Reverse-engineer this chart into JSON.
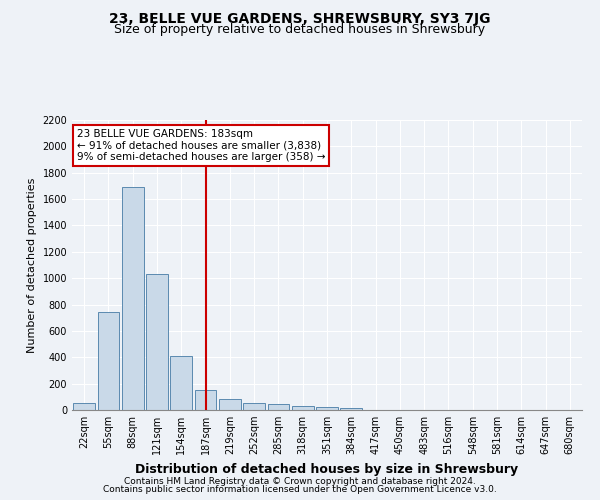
{
  "title": "23, BELLE VUE GARDENS, SHREWSBURY, SY3 7JG",
  "subtitle": "Size of property relative to detached houses in Shrewsbury",
  "xlabel": "Distribution of detached houses by size in Shrewsbury",
  "ylabel": "Number of detached properties",
  "bin_labels": [
    "22sqm",
    "55sqm",
    "88sqm",
    "121sqm",
    "154sqm",
    "187sqm",
    "219sqm",
    "252sqm",
    "285sqm",
    "318sqm",
    "351sqm",
    "384sqm",
    "417sqm",
    "450sqm",
    "483sqm",
    "516sqm",
    "548sqm",
    "581sqm",
    "614sqm",
    "647sqm",
    "680sqm"
  ],
  "bar_values": [
    50,
    740,
    1690,
    1030,
    410,
    155,
    85,
    50,
    45,
    30,
    20,
    15,
    0,
    0,
    0,
    0,
    0,
    0,
    0,
    0,
    0
  ],
  "bar_color": "#c9d9e8",
  "bar_edge_color": "#5a8ab0",
  "vline_bin": 5,
  "vline_color": "#cc0000",
  "annotation_line1": "23 BELLE VUE GARDENS: 183sqm",
  "annotation_line2": "← 91% of detached houses are smaller (3,838)",
  "annotation_line3": "9% of semi-detached houses are larger (358) →",
  "annotation_box_color": "#cc0000",
  "footer1": "Contains HM Land Registry data © Crown copyright and database right 2024.",
  "footer2": "Contains public sector information licensed under the Open Government Licence v3.0.",
  "ylim": [
    0,
    2200
  ],
  "yticks": [
    0,
    200,
    400,
    600,
    800,
    1000,
    1200,
    1400,
    1600,
    1800,
    2000,
    2200
  ],
  "background_color": "#eef2f7",
  "grid_color": "#ffffff",
  "title_fontsize": 10,
  "subtitle_fontsize": 9,
  "ylabel_fontsize": 8,
  "xlabel_fontsize": 9,
  "tick_fontsize": 7,
  "annotation_fontsize": 7.5,
  "footer_fontsize": 6.5
}
